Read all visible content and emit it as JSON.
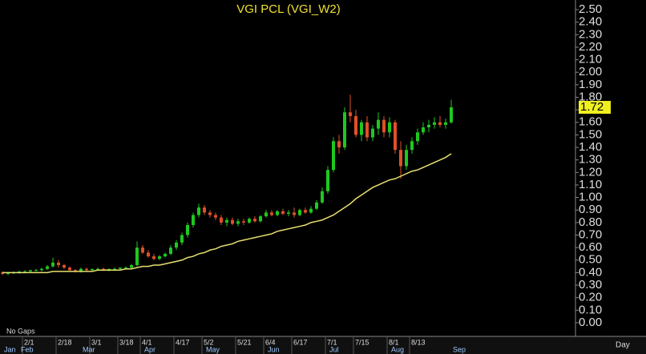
{
  "chart_data": {
    "type": "candlestick",
    "title": "VGI  PCL  (VGI_W2)",
    "note": "No  Gaps",
    "period": "Day",
    "categories": [
      null,
      null,
      null,
      null,
      "2/1",
      null,
      null,
      null,
      null,
      null,
      "2/18",
      null,
      null,
      null,
      null,
      null,
      "3/1",
      null,
      null,
      null,
      null,
      "3/18",
      null,
      null,
      null,
      "4/1",
      null,
      null,
      null,
      null,
      null,
      "4/17",
      null,
      null,
      null,
      null,
      "5/2",
      null,
      null,
      null,
      null,
      null,
      "5/21",
      null,
      null,
      null,
      null,
      "6/4",
      null,
      null,
      null,
      null,
      "6/17",
      null,
      null,
      null,
      null,
      null,
      "7/1",
      null,
      null,
      null,
      null,
      "7/15",
      null,
      null,
      null,
      null,
      null,
      "8/1",
      null,
      null,
      null,
      "8/13",
      null,
      null,
      null,
      null,
      null,
      null,
      null
    ],
    "months": [
      "Jan",
      null,
      null,
      "Feb",
      null,
      null,
      null,
      null,
      null,
      null,
      null,
      null,
      null,
      null,
      "Mar",
      null,
      null,
      null,
      null,
      null,
      null,
      null,
      null,
      null,
      null,
      "Apr",
      null,
      null,
      null,
      null,
      null,
      null,
      null,
      null,
      null,
      null,
      "May",
      null,
      null,
      null,
      null,
      null,
      null,
      null,
      null,
      null,
      null,
      "Jun",
      null,
      null,
      null,
      null,
      null,
      null,
      null,
      null,
      null,
      null,
      "Jul",
      null,
      null,
      null,
      null,
      null,
      null,
      null,
      null,
      null,
      null,
      "Aug",
      null,
      null,
      null,
      null,
      null,
      null,
      null,
      null,
      null,
      null,
      "Sep"
    ],
    "open": [
      0.4,
      0.39,
      0.4,
      0.4,
      0.41,
      0.41,
      0.42,
      0.42,
      0.43,
      0.45,
      0.48,
      0.46,
      0.44,
      0.42,
      0.41,
      0.43,
      0.42,
      0.43,
      0.43,
      0.42,
      0.43,
      0.43,
      0.44,
      0.44,
      0.46,
      0.6,
      0.56,
      0.53,
      0.51,
      0.53,
      0.55,
      0.6,
      0.64,
      0.7,
      0.78,
      0.86,
      0.92,
      0.88,
      0.86,
      0.84,
      0.8,
      0.82,
      0.79,
      0.81,
      0.8,
      0.83,
      0.81,
      0.85,
      0.88,
      0.86,
      0.89,
      0.87,
      0.88,
      0.86,
      0.9,
      0.88,
      0.91,
      0.96,
      1.05,
      1.22,
      1.45,
      1.4,
      1.68,
      1.65,
      1.5,
      1.6,
      1.48,
      1.55,
      1.62,
      1.52,
      1.6,
      1.38,
      1.25,
      1.38,
      1.45,
      1.52,
      1.56,
      1.58,
      1.6,
      1.58,
      1.6
    ],
    "high": [
      0.41,
      0.4,
      0.41,
      0.41,
      0.42,
      0.42,
      0.43,
      0.44,
      0.46,
      0.52,
      0.5,
      0.47,
      0.45,
      0.43,
      0.44,
      0.44,
      0.43,
      0.44,
      0.44,
      0.43,
      0.44,
      0.44,
      0.45,
      0.47,
      0.65,
      0.62,
      0.58,
      0.55,
      0.54,
      0.56,
      0.62,
      0.66,
      0.72,
      0.8,
      0.88,
      0.95,
      0.94,
      0.9,
      0.88,
      0.86,
      0.84,
      0.84,
      0.83,
      0.83,
      0.84,
      0.85,
      0.86,
      0.9,
      0.9,
      0.9,
      0.91,
      0.9,
      0.92,
      0.91,
      0.92,
      0.93,
      0.98,
      1.08,
      1.25,
      1.48,
      1.5,
      1.72,
      1.82,
      1.7,
      1.62,
      1.65,
      1.58,
      1.68,
      1.65,
      1.64,
      1.62,
      1.45,
      1.42,
      1.48,
      1.55,
      1.6,
      1.62,
      1.64,
      1.65,
      1.63,
      1.78
    ],
    "low": [
      0.38,
      0.38,
      0.39,
      0.39,
      0.4,
      0.4,
      0.41,
      0.41,
      0.42,
      0.44,
      0.44,
      0.43,
      0.41,
      0.4,
      0.4,
      0.41,
      0.41,
      0.42,
      0.42,
      0.41,
      0.42,
      0.42,
      0.43,
      0.43,
      0.45,
      0.55,
      0.52,
      0.5,
      0.5,
      0.52,
      0.54,
      0.58,
      0.62,
      0.68,
      0.76,
      0.84,
      0.86,
      0.84,
      0.82,
      0.78,
      0.77,
      0.78,
      0.77,
      0.78,
      0.79,
      0.8,
      0.8,
      0.84,
      0.85,
      0.85,
      0.86,
      0.85,
      0.84,
      0.85,
      0.87,
      0.87,
      0.9,
      0.95,
      1.03,
      1.2,
      1.35,
      1.38,
      1.6,
      1.48,
      1.45,
      1.45,
      1.45,
      1.5,
      1.48,
      1.48,
      1.35,
      1.15,
      1.22,
      1.35,
      1.42,
      1.5,
      1.52,
      1.55,
      1.56,
      1.55,
      1.59
    ],
    "close": [
      0.39,
      0.4,
      0.4,
      0.41,
      0.41,
      0.42,
      0.42,
      0.43,
      0.45,
      0.48,
      0.46,
      0.44,
      0.42,
      0.41,
      0.43,
      0.42,
      0.43,
      0.43,
      0.42,
      0.43,
      0.43,
      0.44,
      0.44,
      0.46,
      0.6,
      0.56,
      0.53,
      0.51,
      0.53,
      0.55,
      0.6,
      0.64,
      0.7,
      0.78,
      0.86,
      0.92,
      0.88,
      0.86,
      0.84,
      0.8,
      0.82,
      0.79,
      0.81,
      0.8,
      0.83,
      0.81,
      0.85,
      0.88,
      0.86,
      0.89,
      0.87,
      0.88,
      0.86,
      0.9,
      0.88,
      0.91,
      0.96,
      1.05,
      1.22,
      1.45,
      1.4,
      1.68,
      1.65,
      1.5,
      1.6,
      1.48,
      1.55,
      1.62,
      1.52,
      1.6,
      1.38,
      1.25,
      1.38,
      1.45,
      1.52,
      1.56,
      1.58,
      1.6,
      1.58,
      1.6,
      1.72
    ],
    "moving_average": [
      0.4,
      0.4,
      0.4,
      0.4,
      0.4,
      0.4,
      0.4,
      0.4,
      0.4,
      0.41,
      0.41,
      0.41,
      0.41,
      0.41,
      0.41,
      0.41,
      0.41,
      0.42,
      0.42,
      0.42,
      0.42,
      0.42,
      0.43,
      0.43,
      0.44,
      0.45,
      0.45,
      0.46,
      0.46,
      0.47,
      0.48,
      0.49,
      0.5,
      0.52,
      0.53,
      0.55,
      0.56,
      0.58,
      0.59,
      0.61,
      0.62,
      0.63,
      0.65,
      0.66,
      0.67,
      0.68,
      0.69,
      0.7,
      0.71,
      0.73,
      0.74,
      0.75,
      0.76,
      0.77,
      0.78,
      0.8,
      0.81,
      0.82,
      0.84,
      0.86,
      0.89,
      0.92,
      0.95,
      0.99,
      1.02,
      1.05,
      1.08,
      1.1,
      1.12,
      1.14,
      1.15,
      1.17,
      1.19,
      1.21,
      1.22,
      1.24,
      1.26,
      1.28,
      1.3,
      1.32,
      1.35
    ],
    "up_color": "#1fc81f",
    "down_color": "#e0502a",
    "ma_color": "#e8e070",
    "last_price": 1.72,
    "ylim": [
      -0.1,
      2.55
    ],
    "yticks": [
      {
        "value": 0,
        "label": "0.00"
      },
      {
        "value": 0.1,
        "label": "0.10"
      },
      {
        "value": 0.2,
        "label": "0.20"
      },
      {
        "value": 0.3,
        "label": "0.30"
      },
      {
        "value": 0.4,
        "label": "0.40"
      },
      {
        "value": 0.5,
        "label": "0.50"
      },
      {
        "value": 0.6,
        "label": "0.60"
      },
      {
        "value": 0.7,
        "label": "0.70"
      },
      {
        "value": 0.8,
        "label": "0.80"
      },
      {
        "value": 0.9,
        "label": "0.90"
      },
      {
        "value": 1,
        "label": "1.00"
      },
      {
        "value": 1.1,
        "label": "1.10"
      },
      {
        "value": 1.2,
        "label": "1.20"
      },
      {
        "value": 1.3,
        "label": "1.30"
      },
      {
        "value": 1.4,
        "label": "1.40"
      },
      {
        "value": 1.5,
        "label": "1.50"
      },
      {
        "value": 1.6,
        "label": "1.60"
      },
      {
        "value": 1.7,
        "label": "1.70"
      },
      {
        "value": 1.8,
        "label": "1.80"
      },
      {
        "value": 1.9,
        "label": "1.90"
      },
      {
        "value": 2,
        "label": "2.00"
      },
      {
        "value": 2.1,
        "label": "2.10"
      },
      {
        "value": 2.2,
        "label": "2.20"
      },
      {
        "value": 2.3,
        "label": "2.30"
      },
      {
        "value": 2.4,
        "label": "2.40"
      },
      {
        "value": 2.5,
        "label": "2.50"
      }
    ]
  }
}
